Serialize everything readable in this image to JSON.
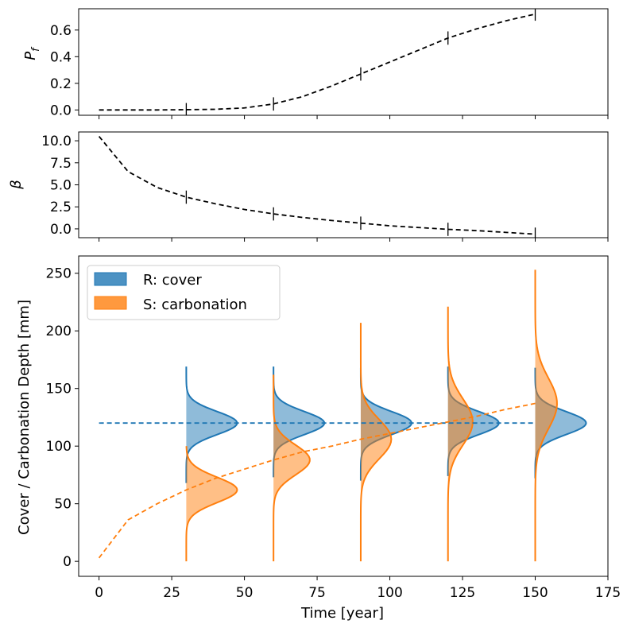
{
  "chart_data": [
    {
      "type": "line",
      "panel": "top",
      "ylabel_symbol": "P",
      "ylabel_subscript": "f",
      "xlim": [
        -7,
        175
      ],
      "ylim": [
        -0.04,
        0.76
      ],
      "yticks": [
        0.0,
        0.2,
        0.4,
        0.6
      ],
      "ytick_labels": [
        "0.0",
        "0.2",
        "0.4",
        "0.6"
      ],
      "grid": false,
      "series": [
        {
          "x": [
            0,
            10,
            20,
            30,
            40,
            50,
            60,
            70,
            80,
            90,
            100,
            110,
            120,
            130,
            140,
            150
          ],
          "y": [
            0.0,
            0.0,
            0.0,
            0.002,
            0.005,
            0.015,
            0.045,
            0.1,
            0.18,
            0.27,
            0.36,
            0.45,
            0.54,
            0.61,
            0.67,
            0.72
          ],
          "color": "#000000",
          "style": "dashed"
        }
      ],
      "error_marks": {
        "x": [
          30,
          60,
          90,
          120,
          150
        ],
        "y": [
          0.002,
          0.045,
          0.27,
          0.54,
          0.72
        ],
        "half_height": 0.05
      }
    },
    {
      "type": "line",
      "panel": "middle",
      "ylabel_symbol": "β",
      "xlim": [
        -7,
        175
      ],
      "ylim": [
        -1.0,
        11.0
      ],
      "yticks": [
        0.0,
        2.5,
        5.0,
        7.5,
        10.0
      ],
      "ytick_labels": [
        "0.0",
        "2.5",
        "5.0",
        "7.5",
        "10.0"
      ],
      "grid": false,
      "series": [
        {
          "x": [
            0,
            10,
            20,
            30,
            40,
            50,
            60,
            70,
            80,
            90,
            100,
            110,
            120,
            130,
            140,
            150
          ],
          "y": [
            10.5,
            6.5,
            4.7,
            3.6,
            2.85,
            2.2,
            1.7,
            1.3,
            0.95,
            0.65,
            0.35,
            0.15,
            -0.05,
            -0.2,
            -0.4,
            -0.6
          ],
          "color": "#000000",
          "style": "dashed"
        }
      ],
      "error_marks": {
        "x": [
          30,
          60,
          90,
          120,
          150
        ],
        "y": [
          3.6,
          1.7,
          0.65,
          -0.05,
          -0.6
        ],
        "half_height": 0.75
      }
    },
    {
      "type": "area",
      "panel": "bottom",
      "xlabel": "Time [year]",
      "ylabel": "Cover / Carbonation Depth [mm]",
      "xlim": [
        -7,
        175
      ],
      "ylim": [
        -13,
        265
      ],
      "xticks": [
        0,
        25,
        50,
        75,
        100,
        125,
        150,
        175
      ],
      "xtick_labels": [
        "0",
        "25",
        "50",
        "75",
        "100",
        "125",
        "150",
        "175"
      ],
      "yticks": [
        0,
        50,
        100,
        150,
        200,
        250
      ],
      "ytick_labels": [
        "0",
        "50",
        "100",
        "150",
        "200",
        "250"
      ],
      "grid": false,
      "legend_position": "top-left",
      "legend": [
        {
          "label": "R: cover",
          "color": "#1f77b4"
        },
        {
          "label": "S: carbonation",
          "color": "#ff7f0e"
        }
      ],
      "mean_lines": [
        {
          "name": "R: cover",
          "color": "#1f77b4",
          "x": [
            0,
            150
          ],
          "y": [
            120,
            120
          ]
        },
        {
          "name": "S: carbonation",
          "color": "#ff7f0e",
          "x": [
            0,
            10,
            20,
            30,
            40,
            50,
            60,
            70,
            80,
            90,
            100,
            110,
            120,
            130,
            140,
            150
          ],
          "y": [
            3,
            36,
            50,
            62,
            72,
            80,
            88,
            95,
            100,
            106,
            111,
            116,
            121,
            126,
            132,
            137
          ]
        }
      ],
      "distributions": [
        {
          "t": 30,
          "R": {
            "mean": 120,
            "sd": 10,
            "ymin": 68,
            "ymax": 169,
            "peak": 17.5
          },
          "S": {
            "mean": 62,
            "sd": 11,
            "ymin": 0,
            "ymax": 100,
            "peak": 17.5
          }
        },
        {
          "t": 60,
          "R": {
            "mean": 120,
            "sd": 10,
            "ymin": 73,
            "ymax": 169,
            "peak": 17.5
          },
          "S": {
            "mean": 88,
            "sd": 13,
            "ymin": 0,
            "ymax": 162,
            "peak": 12.5
          }
        },
        {
          "t": 90,
          "R": {
            "mean": 120,
            "sd": 10,
            "ymin": 70,
            "ymax": 168,
            "peak": 17.5
          },
          "S": {
            "mean": 106,
            "sd": 17,
            "ymin": 0,
            "ymax": 207,
            "peak": 10.5
          }
        },
        {
          "t": 120,
          "R": {
            "mean": 120,
            "sd": 10,
            "ymin": 74,
            "ymax": 169,
            "peak": 17.5
          },
          "S": {
            "mean": 121,
            "sd": 20,
            "ymin": 0,
            "ymax": 221,
            "peak": 8.5
          }
        },
        {
          "t": 150,
          "R": {
            "mean": 120,
            "sd": 10,
            "ymin": 72,
            "ymax": 168,
            "peak": 17.5
          },
          "S": {
            "mean": 137,
            "sd": 22,
            "ymin": 0,
            "ymax": 253,
            "peak": 7.5
          }
        }
      ]
    }
  ]
}
